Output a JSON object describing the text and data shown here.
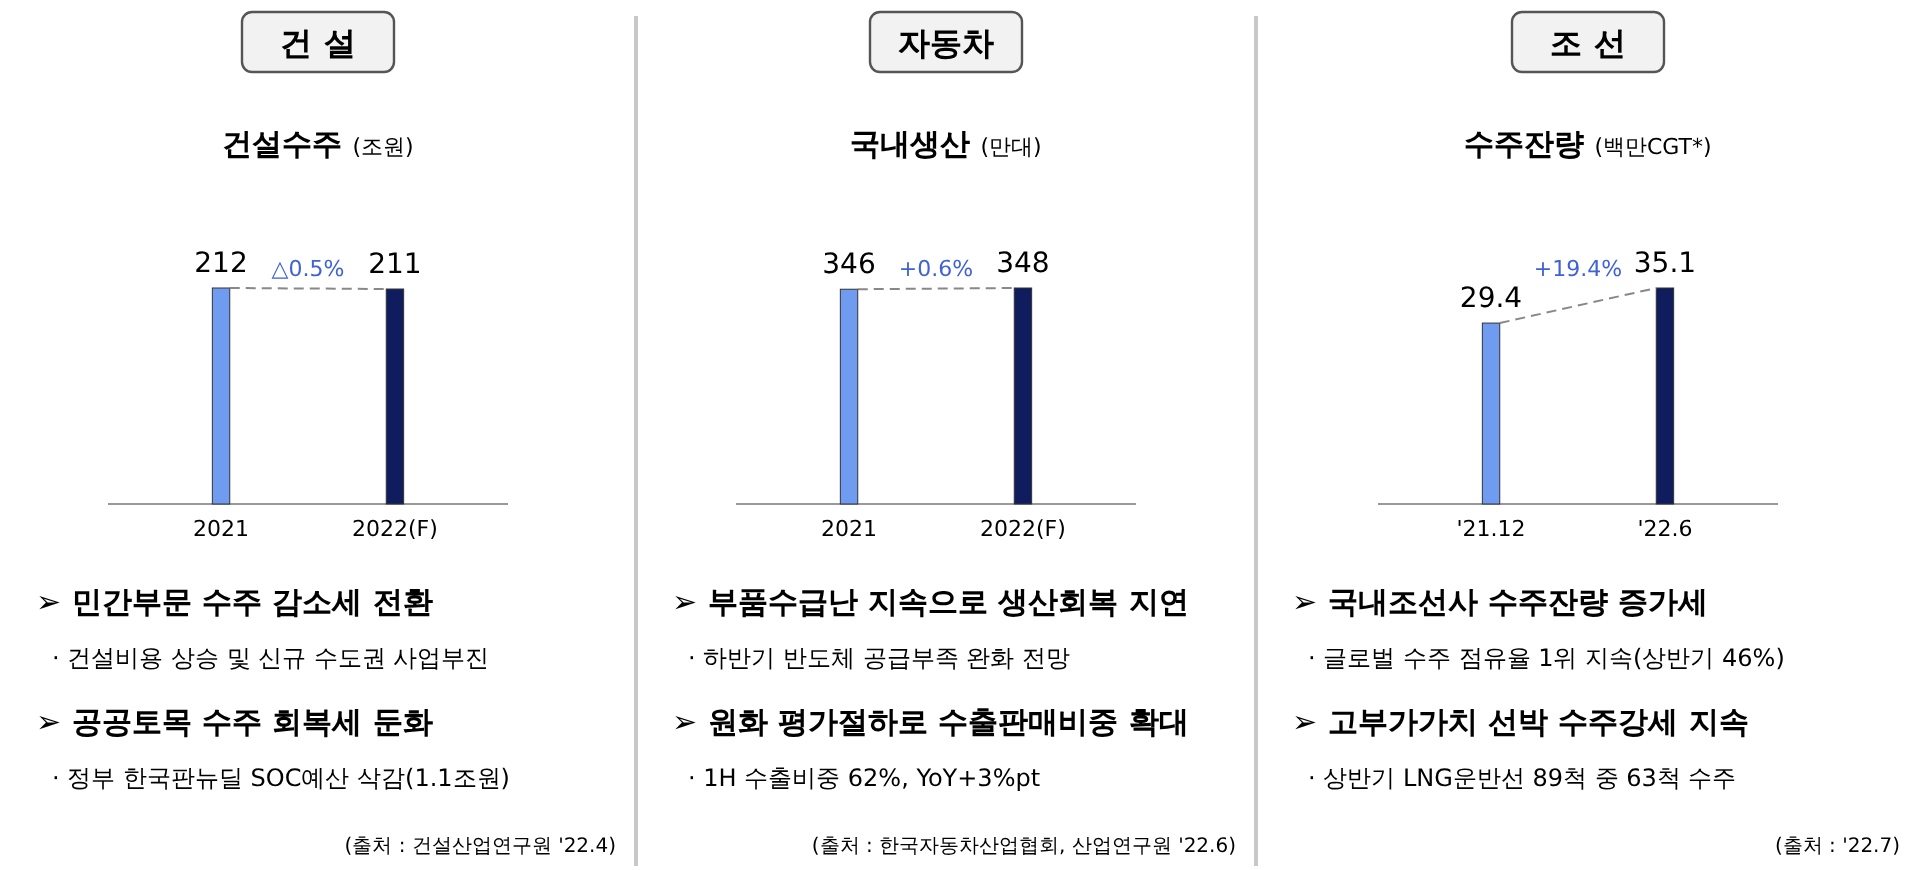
{
  "chart_data": [
    {
      "type": "bar",
      "title": "건설수주",
      "subtitle": "(조원)",
      "categories": [
        "2021",
        "2022(F)"
      ],
      "values": [
        212,
        211
      ],
      "colors": [
        "#6f9cf0",
        "#0f1d5e"
      ],
      "data_labels": true,
      "annotations": [
        "건 설",
        "△0.5%",
        "➢ 민간부문 수주 감소세 전환",
        "· 건설비용 상승 및 신규 수도권 사업부진",
        "➢ 공공토목 수주 회복세 둔화",
        "· 정부 한국판뉴딜 SOC예산 삭감(1.1조원)",
        "(출처 : 건설산업연구원 '22.4)"
      ]
    },
    {
      "type": "bar",
      "title": "국내생산",
      "subtitle": "(만대)",
      "categories": [
        "2021",
        "2022(F)"
      ],
      "values": [
        346,
        348
      ],
      "colors": [
        "#6f9cf0",
        "#0f1d5e"
      ],
      "data_labels": true,
      "annotations": [
        "자동차",
        "+0.6%",
        "➢ 부품수급난 지속으로 생산회복 지연",
        "· 하반기 반도체 공급부족 완화 전망",
        "➢ 원화 평가절하로 수출판매비중 확대",
        "· 1H 수출비중 62%, YoY+3%pt",
        "(출처 : 한국자동차산업협회, 산업연구원 '22.6)"
      ]
    },
    {
      "type": "bar",
      "title": "수주잔량",
      "subtitle": "(백만CGT*)",
      "categories": [
        "'21.12",
        "'22.6"
      ],
      "values": [
        29.4,
        35.1
      ],
      "colors": [
        "#6f9cf0",
        "#0f1d5e"
      ],
      "data_labels": true,
      "annotations": [
        "조 선",
        "+19.4%",
        "➢ 국내조선사 수주잔량 증가세",
        "· 글로벌 수주 점유율 1위 지속(상반기 46%)",
        "➢ 고부가가치 선박 수주강세 지속",
        "· 상반기 LNG운반선 89척 중 63척 수주",
        "(출처 : '22.7)"
      ]
    }
  ]
}
